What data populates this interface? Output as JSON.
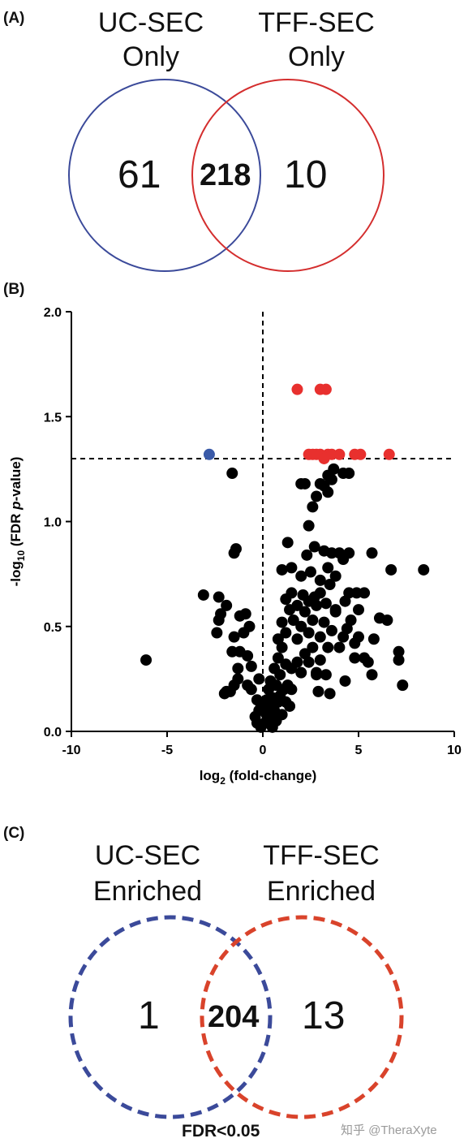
{
  "panel_a": {
    "label": "(A)",
    "left_title_line1": "UC-SEC",
    "left_title_line2": "Only",
    "right_title_line1": "TFF-SEC",
    "right_title_line2": "Only",
    "left_count": "61",
    "overlap_count": "218",
    "right_count": "10",
    "left_color": "#3b4a9a",
    "right_color": "#d42e2e"
  },
  "panel_b": {
    "label": "(B)"
  },
  "panel_c": {
    "label": "(C)",
    "left_title_line1": "UC-SEC",
    "left_title_line2": "Enriched",
    "right_title_line1": "TFF-SEC",
    "right_title_line2": "Enriched",
    "left_count": "1",
    "overlap_count": "204",
    "right_count": "13",
    "footer": "FDR<0.05",
    "left_color": "#3b4a9a",
    "right_color": "#d9432b"
  },
  "watermark": "知乎 @TheraXyte",
  "chart_data": {
    "type": "scatter",
    "title": "",
    "xlabel": "log",
    "xlabel_sub": "2",
    "xlabel_rest": " (fold-change)",
    "ylabel": "-log",
    "ylabel_sub": "10",
    "ylabel_rest": " (FDR ",
    "ylabel_italic": "p",
    "ylabel_end": "-value)",
    "xlim": [
      -10,
      10
    ],
    "ylim": [
      0,
      2.0
    ],
    "xticks": [
      -10,
      -5,
      0,
      5,
      10
    ],
    "yticks": [
      0.0,
      0.5,
      1.0,
      1.5,
      2.0
    ],
    "xtick_labels": [
      "-10",
      "-5",
      "0",
      "5",
      "10"
    ],
    "ytick_labels": [
      "0.0",
      "0.5",
      "1.0",
      "1.5",
      "2.0"
    ],
    "threshold_y": 1.3,
    "threshold_x": 0,
    "series": [
      {
        "color": "#3a5aa8",
        "points": [
          [
            -2.8,
            1.32
          ]
        ]
      },
      {
        "color": "#e8302e",
        "points": [
          [
            1.8,
            1.63
          ],
          [
            3.0,
            1.63
          ],
          [
            3.3,
            1.63
          ],
          [
            2.4,
            1.32
          ],
          [
            2.6,
            1.32
          ],
          [
            2.8,
            1.32
          ],
          [
            3.0,
            1.32
          ],
          [
            3.2,
            1.3
          ],
          [
            3.4,
            1.32
          ],
          [
            3.6,
            1.32
          ],
          [
            4.0,
            1.32
          ],
          [
            4.8,
            1.32
          ],
          [
            5.1,
            1.32
          ],
          [
            6.6,
            1.32
          ]
        ]
      },
      {
        "color": "#000000",
        "points": [
          [
            -6.1,
            0.34
          ],
          [
            -1.6,
            1.23
          ],
          [
            -1.5,
            0.85
          ],
          [
            -1.4,
            0.87
          ],
          [
            -3.1,
            0.65
          ],
          [
            -2.3,
            0.64
          ],
          [
            -2.2,
            0.56
          ],
          [
            -2.4,
            0.47
          ],
          [
            -2.3,
            0.53
          ],
          [
            -1.9,
            0.6
          ],
          [
            -1.2,
            0.55
          ],
          [
            -1.0,
            0.47
          ],
          [
            -1.5,
            0.45
          ],
          [
            -0.7,
            0.5
          ],
          [
            -0.9,
            0.56
          ],
          [
            -0.8,
            0.36
          ],
          [
            -1.2,
            0.38
          ],
          [
            -1.6,
            0.38
          ],
          [
            -1.3,
            0.3
          ],
          [
            -0.6,
            0.31
          ],
          [
            -1.5,
            0.22
          ],
          [
            -1.7,
            0.19
          ],
          [
            -1.9,
            0.19
          ],
          [
            -2.0,
            0.18
          ],
          [
            -1.3,
            0.25
          ],
          [
            -0.8,
            0.22
          ],
          [
            -0.6,
            0.2
          ],
          [
            -0.2,
            0.25
          ],
          [
            -0.3,
            0.15
          ],
          [
            -0.1,
            0.13
          ],
          [
            -0.2,
            0.1
          ],
          [
            -0.4,
            0.07
          ],
          [
            -0.3,
            0.04
          ],
          [
            -0.1,
            0.02
          ],
          [
            0.1,
            0.04
          ],
          [
            0.2,
            0.08
          ],
          [
            0.3,
            0.12
          ],
          [
            0.4,
            0.06
          ],
          [
            0.5,
            0.02
          ],
          [
            0.6,
            0.1
          ],
          [
            0.7,
            0.05
          ],
          [
            0.8,
            0.14
          ],
          [
            0.9,
            0.17
          ],
          [
            1.0,
            0.08
          ],
          [
            1.1,
            0.2
          ],
          [
            1.2,
            0.14
          ],
          [
            0.3,
            0.2
          ],
          [
            0.5,
            0.16
          ],
          [
            0.7,
            0.22
          ],
          [
            0.2,
            0.15
          ],
          [
            0.0,
            0.1
          ],
          [
            0.4,
            0.24
          ],
          [
            0.6,
            0.3
          ],
          [
            0.9,
            0.27
          ],
          [
            1.3,
            0.22
          ],
          [
            1.5,
            0.2
          ],
          [
            0.8,
            0.35
          ],
          [
            1.0,
            0.4
          ],
          [
            1.2,
            0.32
          ],
          [
            1.5,
            0.3
          ],
          [
            1.8,
            0.33
          ],
          [
            2.0,
            0.28
          ],
          [
            2.2,
            0.37
          ],
          [
            2.4,
            0.33
          ],
          [
            2.6,
            0.4
          ],
          [
            2.8,
            0.27
          ],
          [
            3.0,
            0.34
          ],
          [
            3.3,
            0.27
          ],
          [
            3.5,
            0.18
          ],
          [
            2.9,
            0.19
          ],
          [
            0.8,
            0.44
          ],
          [
            1.0,
            0.52
          ],
          [
            1.2,
            0.47
          ],
          [
            1.4,
            0.58
          ],
          [
            1.6,
            0.53
          ],
          [
            1.8,
            0.44
          ],
          [
            2.0,
            0.5
          ],
          [
            2.2,
            0.57
          ],
          [
            2.4,
            0.47
          ],
          [
            2.6,
            0.53
          ],
          [
            2.8,
            0.6
          ],
          [
            3.0,
            0.45
          ],
          [
            3.2,
            0.52
          ],
          [
            3.4,
            0.4
          ],
          [
            3.6,
            0.48
          ],
          [
            3.8,
            0.57
          ],
          [
            4.0,
            0.4
          ],
          [
            4.2,
            0.45
          ],
          [
            4.4,
            0.49
          ],
          [
            4.6,
            0.53
          ],
          [
            4.8,
            0.42
          ],
          [
            1.2,
            0.63
          ],
          [
            1.5,
            0.66
          ],
          [
            1.8,
            0.6
          ],
          [
            2.1,
            0.65
          ],
          [
            2.4,
            0.62
          ],
          [
            2.7,
            0.64
          ],
          [
            3.0,
            0.66
          ],
          [
            3.3,
            0.61
          ],
          [
            3.5,
            0.7
          ],
          [
            3.8,
            0.58
          ],
          [
            4.3,
            0.62
          ],
          [
            4.9,
            0.66
          ],
          [
            5.3,
            0.66
          ],
          [
            5.0,
            0.58
          ],
          [
            4.5,
            0.66
          ],
          [
            1.0,
            0.77
          ],
          [
            1.5,
            0.78
          ],
          [
            2.0,
            0.74
          ],
          [
            2.5,
            0.76
          ],
          [
            3.0,
            0.72
          ],
          [
            3.4,
            0.78
          ],
          [
            3.8,
            0.74
          ],
          [
            4.2,
            0.82
          ],
          [
            4.5,
            0.85
          ],
          [
            4.0,
            0.85
          ],
          [
            3.6,
            0.85
          ],
          [
            2.7,
            0.88
          ],
          [
            2.3,
            0.84
          ],
          [
            3.2,
            0.86
          ],
          [
            5.7,
            0.85
          ],
          [
            6.7,
            0.77
          ],
          [
            8.4,
            0.77
          ],
          [
            6.5,
            0.53
          ],
          [
            2.4,
            0.98
          ],
          [
            1.3,
            0.9
          ],
          [
            2.6,
            1.07
          ],
          [
            2.8,
            1.12
          ],
          [
            3.0,
            1.18
          ],
          [
            3.2,
            1.17
          ],
          [
            3.4,
            1.14
          ],
          [
            3.6,
            1.2
          ],
          [
            3.4,
            1.22
          ],
          [
            2.2,
            1.18
          ],
          [
            2.0,
            1.18
          ],
          [
            4.5,
            1.23
          ],
          [
            4.2,
            1.23
          ],
          [
            3.7,
            1.25
          ],
          [
            5.0,
            0.45
          ],
          [
            5.3,
            0.35
          ],
          [
            5.5,
            0.33
          ],
          [
            5.7,
            0.27
          ],
          [
            5.8,
            0.44
          ],
          [
            6.1,
            0.54
          ],
          [
            7.1,
            0.34
          ],
          [
            7.3,
            0.22
          ],
          [
            7.1,
            0.38
          ],
          [
            4.8,
            0.35
          ],
          [
            4.3,
            0.24
          ],
          [
            1.4,
            0.12
          ],
          [
            2.8,
            0.28
          ]
        ]
      }
    ]
  }
}
